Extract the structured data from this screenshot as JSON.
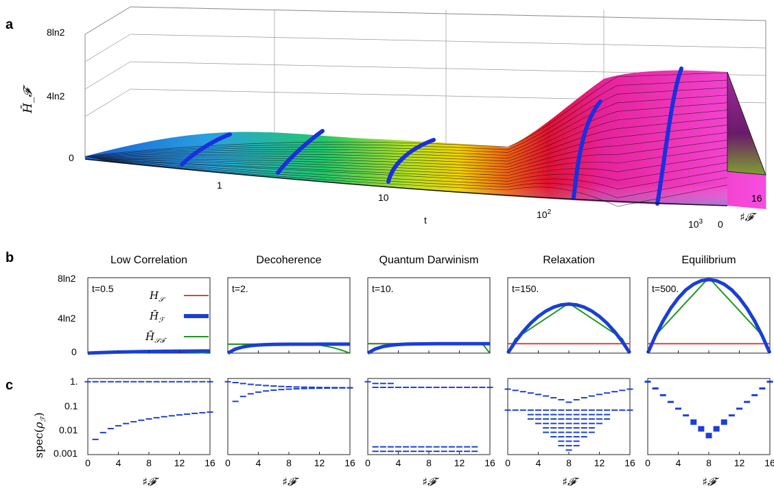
{
  "panel_labels": {
    "a": "a",
    "b": "b",
    "c": "c"
  },
  "chart_data": [
    {
      "id": "a",
      "type": "surface3d",
      "xlabel": "t",
      "ylabel": "♯𝓕",
      "zlabel": "H̄_𝓕",
      "x_ticks": [
        "1",
        "10",
        "10²",
        "10³"
      ],
      "x_scale": "log",
      "x_range": [
        0.1,
        1000
      ],
      "y_ticks": [
        "0",
        "16"
      ],
      "z_ticks": [
        "0",
        "4ln2",
        "8ln2"
      ],
      "z_range_ln2": [
        0,
        8
      ],
      "highlighted_times": [
        0.5,
        2,
        10,
        150,
        500
      ]
    },
    {
      "id": "b",
      "type": "line",
      "titles": [
        "Low Correlation",
        "Decoherence",
        "Quantum Darwinism",
        "Relaxation",
        "Equilibrium"
      ],
      "time_labels": [
        "t=0.5",
        "t=2.",
        "t=10.",
        "t=150.",
        "t=500."
      ],
      "y_ticks": [
        "0",
        "4ln2",
        "8ln2"
      ],
      "ylim_ln2": [
        0,
        8
      ],
      "xlim": [
        0,
        16
      ],
      "legend": [
        "H_S",
        "H̄_F",
        "H̄_SF"
      ],
      "series_colors": {
        "HS": "#d9462b",
        "HF": "#1a3fd6",
        "HSF": "#1a9a1a"
      },
      "panels": [
        {
          "HS": 0.1,
          "HF_end": 0.25,
          "HSF_peak": 0.2
        },
        {
          "HS": 0.95,
          "HF_end": 0.95,
          "HSF_peak": 0.95
        },
        {
          "HS": 1.0,
          "HF_end": 1.0,
          "HSF_peak": 1.0
        },
        {
          "HS": 1.0,
          "HF_peak": 5.2,
          "HSF_peak": 5.3
        },
        {
          "HS": 1.0,
          "HF_peak": 7.8,
          "HSF_peak": 8.0
        }
      ]
    },
    {
      "id": "c",
      "type": "scatter",
      "ylabel": "spec(ρ_F)",
      "xlabel": "♯𝓕",
      "y_scale": "log",
      "y_ticks": [
        "1.",
        "0.1",
        "0.01",
        "0.001"
      ],
      "x_ticks": [
        "0",
        "4",
        "8",
        "12",
        "16"
      ],
      "xlim": [
        0,
        16
      ],
      "ylim": [
        0.0008,
        1.3
      ]
    }
  ]
}
